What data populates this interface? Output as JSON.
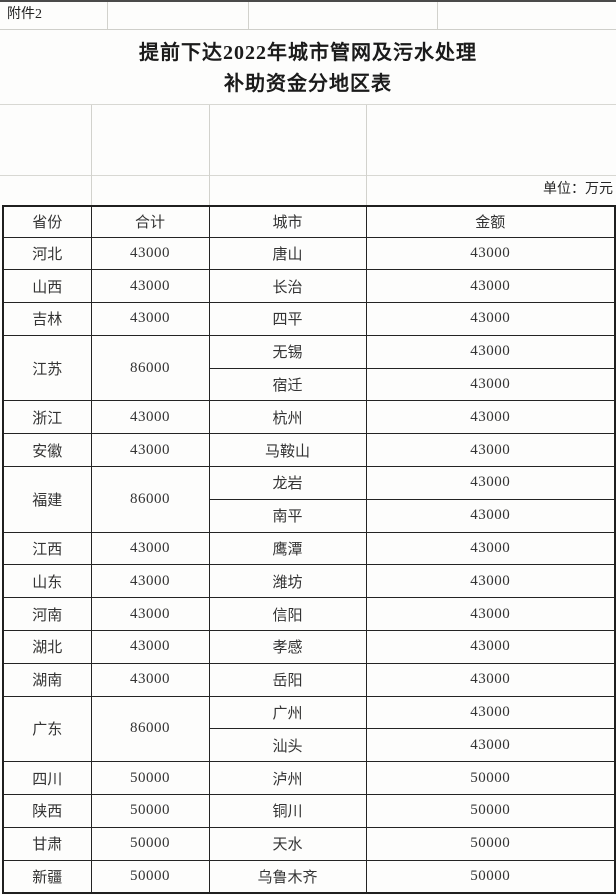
{
  "attachment_label": "附件2",
  "title": {
    "line1": "提前下达2022年城市管网及污水处理",
    "line2": "补助资金分地区表"
  },
  "unit_label": "单位：万元",
  "table": {
    "headers": [
      "省份",
      "合计",
      "城市",
      "金额"
    ],
    "rows": [
      {
        "province": "河北",
        "total": "43000",
        "cities": [
          {
            "name": "唐山",
            "amount": "43000"
          }
        ]
      },
      {
        "province": "山西",
        "total": "43000",
        "cities": [
          {
            "name": "长治",
            "amount": "43000"
          }
        ]
      },
      {
        "province": "吉林",
        "total": "43000",
        "cities": [
          {
            "name": "四平",
            "amount": "43000"
          }
        ]
      },
      {
        "province": "江苏",
        "total": "86000",
        "cities": [
          {
            "name": "无锡",
            "amount": "43000"
          },
          {
            "name": "宿迁",
            "amount": "43000"
          }
        ]
      },
      {
        "province": "浙江",
        "total": "43000",
        "cities": [
          {
            "name": "杭州",
            "amount": "43000"
          }
        ]
      },
      {
        "province": "安徽",
        "total": "43000",
        "cities": [
          {
            "name": "马鞍山",
            "amount": "43000"
          }
        ]
      },
      {
        "province": "福建",
        "total": "86000",
        "cities": [
          {
            "name": "龙岩",
            "amount": "43000"
          },
          {
            "name": "南平",
            "amount": "43000"
          }
        ]
      },
      {
        "province": "江西",
        "total": "43000",
        "cities": [
          {
            "name": "鹰潭",
            "amount": "43000"
          }
        ]
      },
      {
        "province": "山东",
        "total": "43000",
        "cities": [
          {
            "name": "潍坊",
            "amount": "43000"
          }
        ]
      },
      {
        "province": "河南",
        "total": "43000",
        "cities": [
          {
            "name": "信阳",
            "amount": "43000"
          }
        ]
      },
      {
        "province": "湖北",
        "total": "43000",
        "cities": [
          {
            "name": "孝感",
            "amount": "43000"
          }
        ]
      },
      {
        "province": "湖南",
        "total": "43000",
        "cities": [
          {
            "name": "岳阳",
            "amount": "43000"
          }
        ]
      },
      {
        "province": "广东",
        "total": "86000",
        "cities": [
          {
            "name": "广州",
            "amount": "43000"
          },
          {
            "name": "汕头",
            "amount": "43000"
          }
        ]
      },
      {
        "province": "四川",
        "total": "50000",
        "cities": [
          {
            "name": "泸州",
            "amount": "50000"
          }
        ]
      },
      {
        "province": "陕西",
        "total": "50000",
        "cities": [
          {
            "name": "铜川",
            "amount": "50000"
          }
        ]
      },
      {
        "province": "甘肃",
        "total": "50000",
        "cities": [
          {
            "name": "天水",
            "amount": "50000"
          }
        ]
      },
      {
        "province": "新疆",
        "total": "50000",
        "cities": [
          {
            "name": "乌鲁木齐",
            "amount": "50000"
          }
        ]
      }
    ]
  },
  "colors": {
    "table_border": "#1f1f1f",
    "gridline": "#d2d2cd",
    "background": "#fdfdfc",
    "text": "#2b2b2b"
  }
}
